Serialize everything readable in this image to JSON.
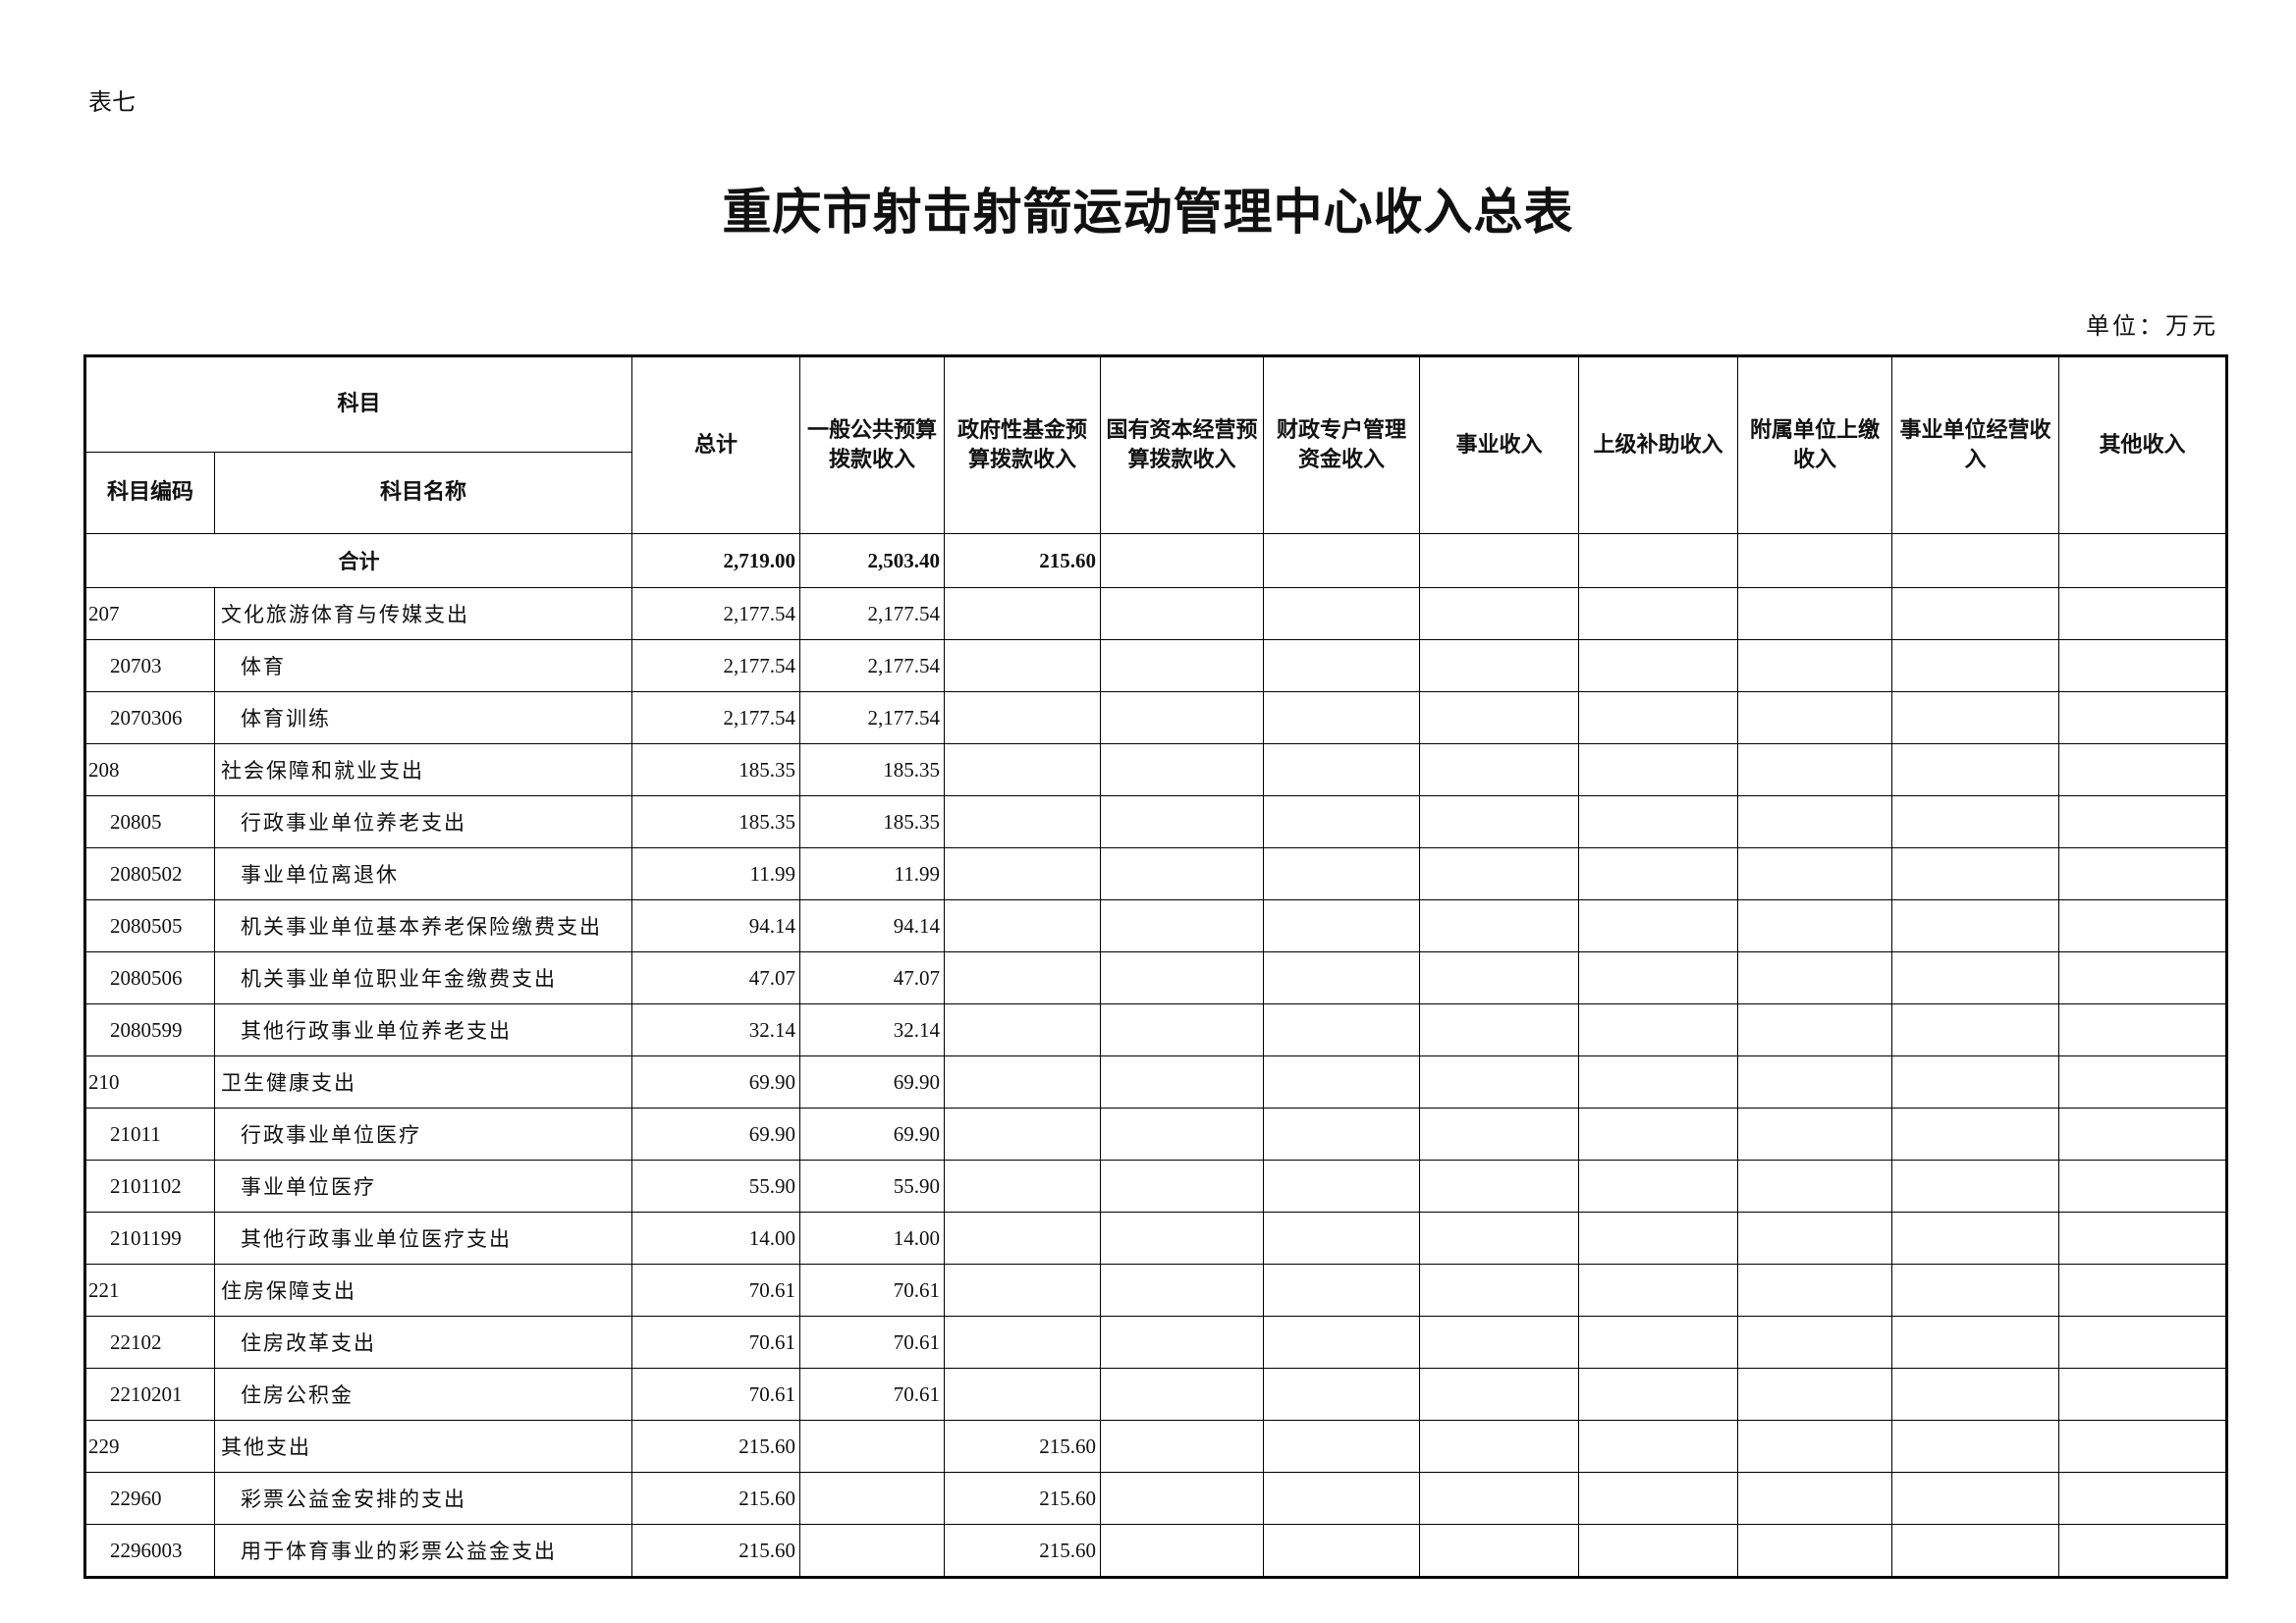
{
  "header": {
    "label": "表七",
    "title": "重庆市射击射箭运动管理中心收入总表",
    "unit": "单位：万元"
  },
  "table": {
    "group_header": "科目",
    "code_header": "科目编码",
    "name_header": "科目名称",
    "columns": [
      "总计",
      "一般公共预算拨款收入",
      "政府性基金预算拨款收入",
      "国有资本经营预算拨款收入",
      "财政专户管理资金收入",
      "事业收入",
      "上级补助收入",
      "附属单位上缴收入",
      "事业单位经营收入",
      "其他收入"
    ],
    "total": {
      "name": "合计",
      "total": "2,719.00",
      "general_budget": "2,503.40",
      "gov_fund": "215.60"
    },
    "rows": [
      {
        "code": "207",
        "name": "文化旅游体育与传媒支出",
        "total": "2,177.54",
        "general_budget": "2,177.54"
      },
      {
        "code": "20703",
        "name": "体育",
        "total": "2,177.54",
        "general_budget": "2,177.54"
      },
      {
        "code": "2070306",
        "name": "体育训练",
        "total": "2,177.54",
        "general_budget": "2,177.54"
      },
      {
        "code": "208",
        "name": "社会保障和就业支出",
        "total": "185.35",
        "general_budget": "185.35"
      },
      {
        "code": "20805",
        "name": "行政事业单位养老支出",
        "total": "185.35",
        "general_budget": "185.35"
      },
      {
        "code": "2080502",
        "name": "事业单位离退休",
        "total": "11.99",
        "general_budget": "11.99"
      },
      {
        "code": "2080505",
        "name": "机关事业单位基本养老保险缴费支出",
        "total": "94.14",
        "general_budget": "94.14"
      },
      {
        "code": "2080506",
        "name": "机关事业单位职业年金缴费支出",
        "total": "47.07",
        "general_budget": "47.07"
      },
      {
        "code": "2080599",
        "name": "其他行政事业单位养老支出",
        "total": "32.14",
        "general_budget": "32.14"
      },
      {
        "code": "210",
        "name": "卫生健康支出",
        "total": "69.90",
        "general_budget": "69.90"
      },
      {
        "code": "21011",
        "name": "行政事业单位医疗",
        "total": "69.90",
        "general_budget": "69.90"
      },
      {
        "code": "2101102",
        "name": "事业单位医疗",
        "total": "55.90",
        "general_budget": "55.90"
      },
      {
        "code": "2101199",
        "name": "其他行政事业单位医疗支出",
        "total": "14.00",
        "general_budget": "14.00"
      },
      {
        "code": "221",
        "name": "住房保障支出",
        "total": "70.61",
        "general_budget": "70.61"
      },
      {
        "code": "22102",
        "name": "住房改革支出",
        "total": "70.61",
        "general_budget": "70.61"
      },
      {
        "code": "2210201",
        "name": "住房公积金",
        "total": "70.61",
        "general_budget": "70.61"
      },
      {
        "code": "229",
        "name": "其他支出",
        "total": "215.60",
        "gov_fund": "215.60"
      },
      {
        "code": "22960",
        "name": "彩票公益金安排的支出",
        "total": "215.60",
        "gov_fund": "215.60"
      },
      {
        "code": "2296003",
        "name": "用于体育事业的彩票公益金支出",
        "total": "215.60",
        "gov_fund": "215.60"
      }
    ]
  }
}
